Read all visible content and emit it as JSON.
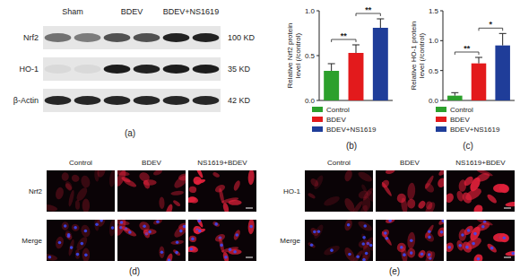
{
  "panel_labels": [
    "(a)",
    "(b)",
    "(c)",
    "(d)",
    "(e)"
  ],
  "blot": {
    "groups": [
      "Sham",
      "BDEV",
      "BDEV+NS1619"
    ],
    "rows": [
      {
        "name": "Nrf2",
        "size": "100 KD"
      },
      {
        "name": "HO-1",
        "size": "35 KD"
      },
      {
        "name": "β-Actin",
        "size": "42 KD"
      }
    ]
  },
  "chart_data": [
    {
      "type": "bar",
      "y_label": [
        "Relative Nrf2 protein",
        "level (/control)"
      ],
      "categories": [
        "Control",
        "BDEV",
        "BDEV+NS1619"
      ],
      "values": [
        0.33,
        0.53,
        0.81
      ],
      "errors": [
        0.08,
        0.09,
        0.1
      ],
      "colors": [
        "#2ca02c",
        "#e31a1c",
        "#1f3d99"
      ],
      "ylim": [
        0,
        1
      ],
      "yticks": [
        {
          "value": 0,
          "label": "0.0"
        },
        {
          "value": 0.5,
          "label": "0.5"
        },
        {
          "value": 1,
          "label": "1.0"
        }
      ],
      "tick_labels": "y",
      "legend": "bottom",
      "significance": [
        {
          "between": [
            0,
            1
          ],
          "label": "**"
        },
        {
          "between": [
            1,
            2
          ],
          "label": "**"
        }
      ]
    },
    {
      "type": "bar",
      "y_label": [
        "Relative HO-1 protein",
        "level (/control)"
      ],
      "categories": [
        "Control",
        "BDEV",
        "BDEV+NS1619"
      ],
      "values": [
        0.08,
        0.62,
        0.92
      ],
      "errors": [
        0.05,
        0.1,
        0.2
      ],
      "colors": [
        "#2ca02c",
        "#e31a1c",
        "#1f3d99"
      ],
      "ylim": [
        0,
        1.5
      ],
      "yticks": [
        {
          "value": 0,
          "label": "0.0"
        },
        {
          "value": 0.5,
          "label": "0.5"
        },
        {
          "value": 1,
          "label": "1.0"
        },
        {
          "value": 1.5,
          "label": "1.5"
        }
      ],
      "tick_labels": "y",
      "legend": "bottom",
      "significance": [
        {
          "between": [
            0,
            1
          ],
          "label": "**"
        },
        {
          "between": [
            1,
            2
          ],
          "label": "*"
        }
      ]
    }
  ],
  "images": [
    {
      "columns": [
        "Control",
        "BDEV",
        "NS1619+BDEV"
      ],
      "rows": [
        "Nrf2",
        "Merge"
      ]
    },
    {
      "columns": [
        "Control",
        "BDEV",
        "NS1619+BDEV"
      ],
      "rows": [
        "HO-1",
        "Merge"
      ]
    }
  ]
}
